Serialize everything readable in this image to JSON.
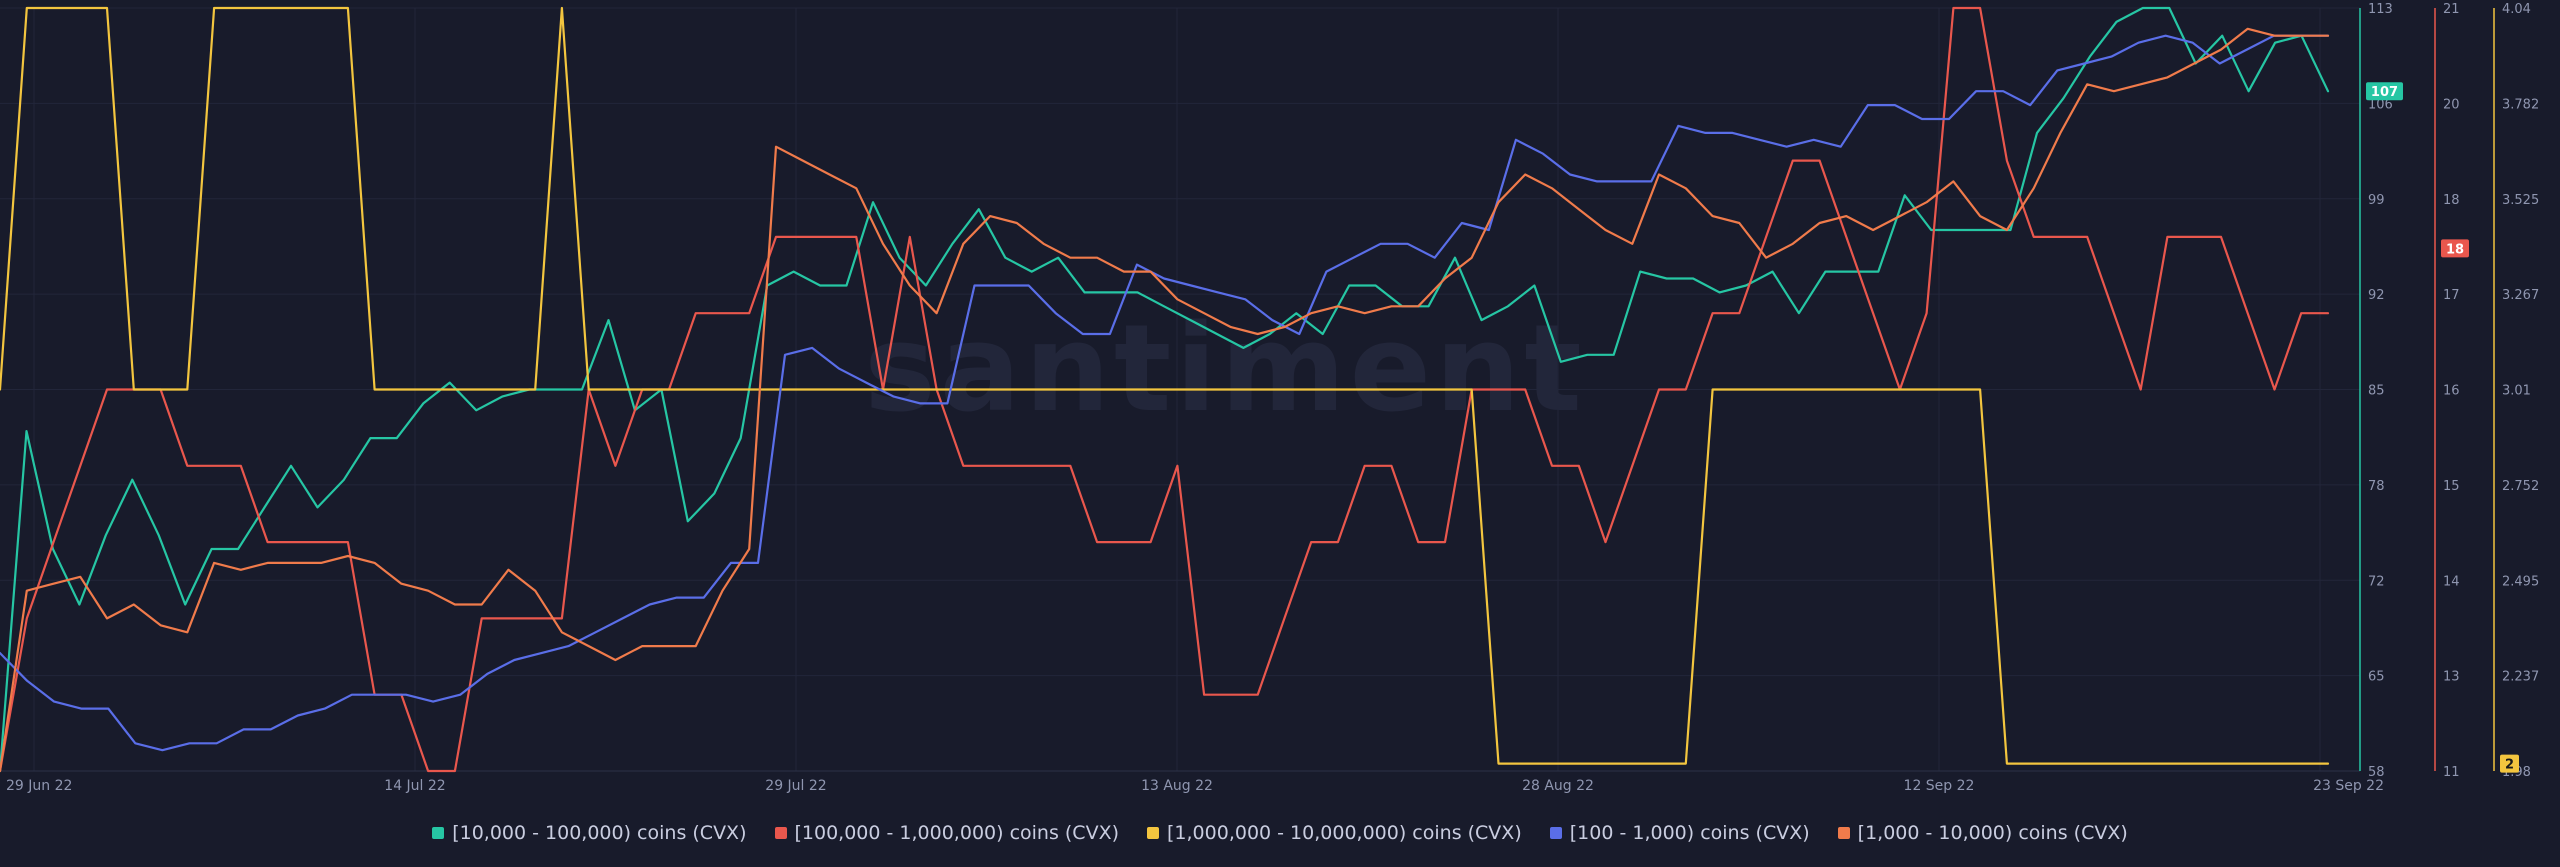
{
  "chart_data": {
    "type": "line",
    "watermark": "santiment",
    "x_ticks": [
      "29 Jun 22",
      "14 Jul 22",
      "29 Jul 22",
      "13 Aug 22",
      "28 Aug 22",
      "12 Sep 22",
      "23 Sep 22"
    ],
    "grid": true,
    "legend_position": "bottom-center",
    "axes": [
      {
        "id": "axis1",
        "range": [
          58,
          113
        ],
        "ticks": [
          "113",
          "106",
          "99",
          "92",
          "85",
          "78",
          "72",
          "65",
          "58"
        ],
        "color": "#26c6a4",
        "badge": "107",
        "badge_value": 107,
        "badge_text_color": "#ffffff"
      },
      {
        "id": "axis2",
        "range": [
          11,
          21
        ],
        "ticks": [
          "21",
          "20",
          "18",
          "17",
          "16",
          "15",
          "14",
          "13",
          "11"
        ],
        "color": "#e9574d",
        "badge": "18",
        "badge_value": 17.85,
        "badge_text_color": "#ffffff"
      },
      {
        "id": "axis3",
        "range": [
          1.98,
          4.04
        ],
        "ticks": [
          "4.04",
          "3.782",
          "3.525",
          "3.267",
          "3.01",
          "2.752",
          "2.495",
          "2.237",
          "1.98"
        ],
        "color": "#f3c53f",
        "badge": "2",
        "badge_value": 2.0,
        "badge_text_color": "#1a1a1a"
      }
    ],
    "series": [
      {
        "name": "[10,000 - 100,000) coins (CVX)",
        "color": "#26c6a4",
        "axis": 0,
        "values": [
          58,
          82.5,
          74,
          70,
          75,
          79,
          75,
          70,
          74,
          74,
          77,
          80,
          77,
          79,
          82,
          82,
          84.5,
          86,
          84,
          85,
          85.5,
          85.5,
          85.5,
          90.5,
          84,
          85.5,
          76,
          78,
          82,
          93,
          94,
          93,
          93,
          99,
          95,
          93,
          96,
          98.5,
          95,
          94,
          95,
          92.5,
          92.5,
          92.5,
          91.5,
          90.5,
          89.5,
          88.5,
          89.5,
          91,
          89.5,
          93,
          93,
          91.5,
          91.5,
          95,
          90.5,
          91.5,
          93,
          87.5,
          88,
          88,
          94,
          93.5,
          93.5,
          92.5,
          93,
          94,
          91,
          94,
          94,
          94,
          99.5,
          97,
          97,
          97,
          97,
          104,
          106.5,
          109.5,
          112,
          113,
          113,
          109,
          111,
          107,
          110.5,
          111,
          107
        ]
      },
      {
        "name": "[100,000  - 1,000,000) coins (CVX)",
        "color": "#e9574d",
        "axis": 1,
        "values": [
          11,
          13,
          14,
          15,
          16,
          16,
          16,
          15,
          15,
          15,
          14,
          14,
          14,
          14,
          12,
          12,
          11,
          11,
          13,
          13,
          13,
          13,
          16,
          15,
          16,
          16,
          17,
          17,
          17,
          18,
          18,
          18,
          18,
          16,
          18,
          16,
          15,
          15,
          15,
          15,
          15,
          14,
          14,
          14,
          15,
          12,
          12,
          12,
          13,
          14,
          14,
          15,
          15,
          14,
          14,
          16,
          16,
          16,
          15,
          15,
          14,
          15,
          16,
          16,
          17,
          17,
          18,
          19,
          19,
          18,
          17,
          16,
          17,
          21,
          21,
          19,
          18,
          18,
          18,
          17,
          16,
          18,
          18,
          18,
          17,
          16,
          17,
          17
        ]
      },
      {
        "name": "[1,000,000 - 10,000,000) coins (CVX)",
        "color": "#f3c53f",
        "axis": 2,
        "values": [
          3.01,
          4.04,
          4.04,
          4.04,
          4.04,
          3.01,
          3.01,
          3.01,
          4.04,
          4.04,
          4.04,
          4.04,
          4.04,
          4.04,
          3.01,
          3.01,
          3.01,
          3.01,
          3.01,
          3.01,
          3.01,
          4.04,
          3.01,
          3.01,
          3.01,
          3.01,
          3.01,
          3.01,
          3.01,
          3.01,
          3.01,
          3.01,
          3.01,
          3.01,
          3.01,
          3.01,
          3.01,
          3.01,
          3.01,
          3.01,
          3.01,
          3.01,
          3.01,
          3.01,
          3.01,
          3.01,
          3.01,
          3.01,
          3.01,
          3.01,
          3.01,
          3.01,
          3.01,
          3.01,
          3.01,
          3.01,
          2.0,
          2.0,
          2.0,
          2.0,
          2.0,
          2.0,
          2.0,
          2.0,
          3.01,
          3.01,
          3.01,
          3.01,
          3.01,
          3.01,
          3.01,
          3.01,
          3.01,
          3.01,
          3.01,
          2.0,
          2.0,
          2.0,
          2.0,
          2.0,
          2.0,
          2.0,
          2.0,
          2.0,
          2.0,
          2.0,
          2.0,
          2.0
        ]
      },
      {
        "name": "[100 - 1,000) coins (CVX)",
        "color": "#5a6ee8",
        "axis": 0,
        "values": [
          66.5,
          64.5,
          63,
          62.5,
          62.5,
          60,
          59.5,
          60,
          60,
          61,
          61,
          62,
          62.5,
          63.5,
          63.5,
          63.5,
          63,
          63.5,
          65,
          66,
          66.5,
          67,
          68,
          69,
          70,
          70.5,
          70.5,
          73,
          73,
          88,
          88.5,
          87,
          86,
          85,
          84.5,
          84.5,
          93,
          93,
          93,
          91,
          89.5,
          89.5,
          94.5,
          93.5,
          93,
          92.5,
          92,
          90.5,
          89.5,
          94,
          95,
          96,
          96,
          95,
          97.5,
          97,
          103.5,
          102.5,
          101,
          100.5,
          100.5,
          100.5,
          104.5,
          104,
          104,
          103.5,
          103,
          103.5,
          103,
          106,
          106,
          105,
          105,
          107,
          107,
          106,
          108.5,
          109,
          109.5,
          110.5,
          111,
          110.5,
          109,
          110,
          111,
          111,
          111
        ]
      },
      {
        "name": "[1,000 - 10,000) coins (CVX)",
        "color": "#f07b4b",
        "axis": 0,
        "values": [
          58,
          71,
          71.5,
          72,
          69,
          70,
          68.5,
          68,
          73,
          72.5,
          73,
          73,
          73,
          73.5,
          73,
          71.5,
          71,
          70,
          70,
          72.5,
          71,
          68,
          67,
          66,
          67,
          67,
          67,
          71,
          74,
          103,
          102,
          101,
          100,
          96,
          93,
          91,
          96,
          98,
          97.5,
          96,
          95,
          95,
          94,
          94,
          92,
          91,
          90,
          89.5,
          90,
          91,
          91.5,
          91,
          91.5,
          91.5,
          93.5,
          95,
          99,
          101,
          100,
          98.5,
          97,
          96,
          101,
          100,
          98,
          97.5,
          95,
          96,
          97.5,
          98,
          97,
          98,
          99,
          100.5,
          98,
          97,
          100,
          104,
          107.5,
          107,
          107.5,
          108,
          109,
          110,
          111.5,
          111,
          111,
          111
        ]
      }
    ],
    "legend": [
      "[10,000 - 100,000) coins (CVX)",
      "[100,000  - 1,000,000) coins (CVX)",
      "[1,000,000 - 10,000,000) coins (CVX)",
      "[100 - 1,000) coins (CVX)",
      "[1,000 - 10,000) coins (CVX)"
    ]
  }
}
